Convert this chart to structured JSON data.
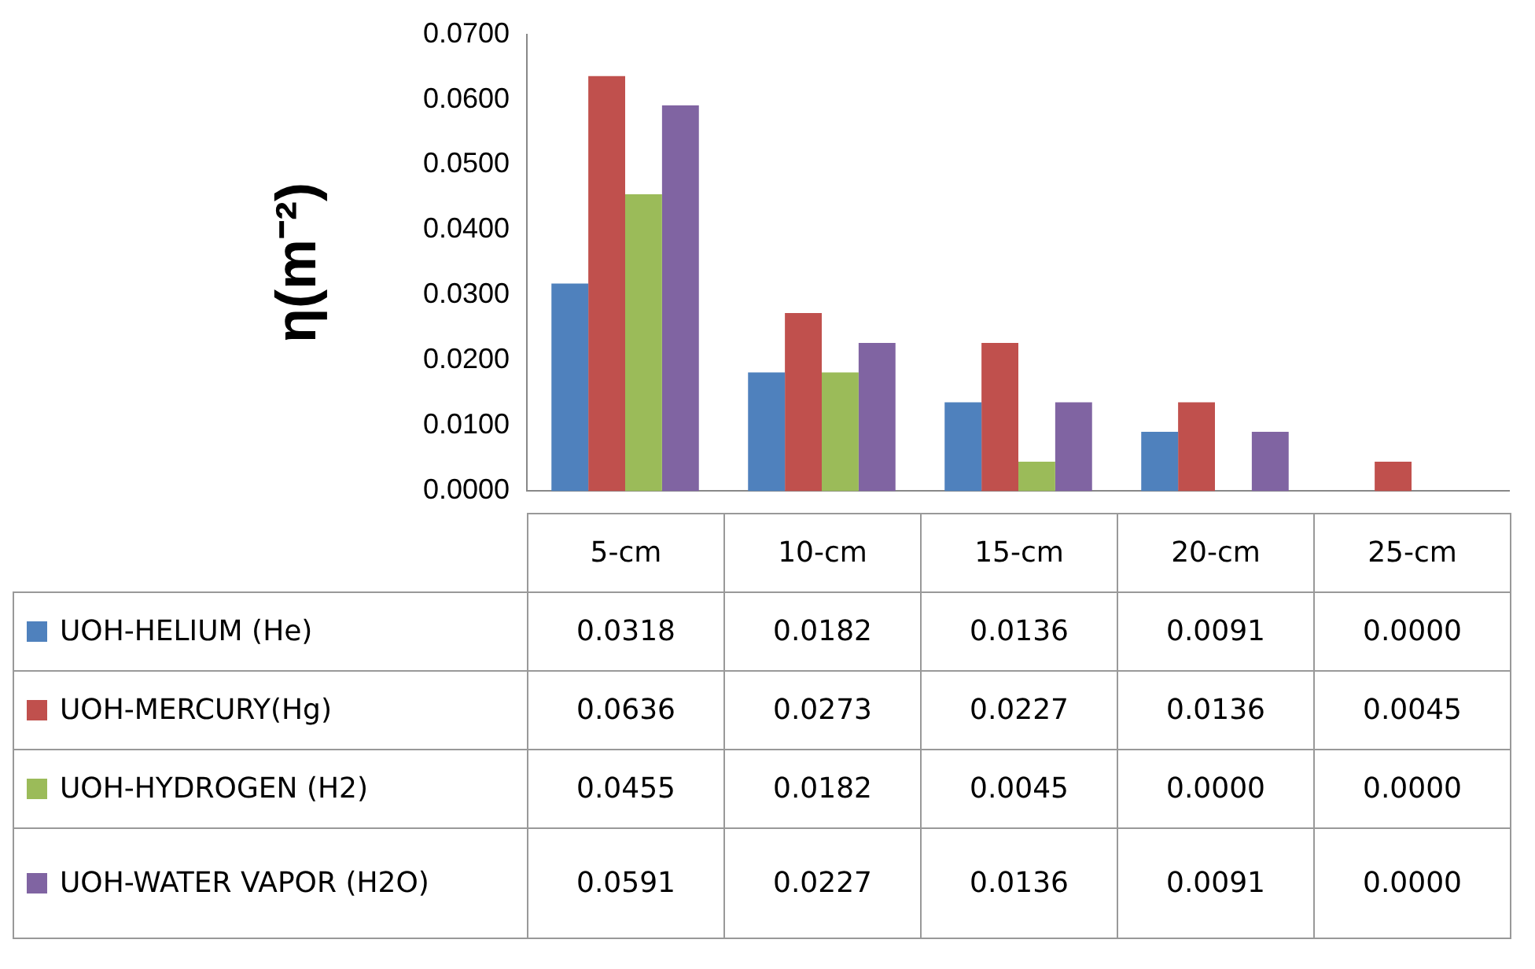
{
  "chart_data": {
    "type": "bar",
    "ylabel": "η(m⁻²)",
    "categories": [
      "5-cm",
      "10-cm",
      "15-cm",
      "20-cm",
      "25-cm"
    ],
    "ylim": [
      0,
      0.07
    ],
    "yticks": [
      {
        "value": 0,
        "label": "0.0000"
      },
      {
        "value": 0.01,
        "label": "0.0100"
      },
      {
        "value": 0.02,
        "label": "0.0200"
      },
      {
        "value": 0.03,
        "label": "0.0300"
      },
      {
        "value": 0.04,
        "label": "0.0400"
      },
      {
        "value": 0.05,
        "label": "0.0500"
      },
      {
        "value": 0.06,
        "label": "0.0600"
      },
      {
        "value": 0.07,
        "label": "0.0700"
      }
    ],
    "grid": false,
    "legend": "bottom",
    "series": [
      {
        "name": "UOH-HELIUM (He)",
        "color": "#4f81bd",
        "values": [
          0.0318,
          0.0182,
          0.0136,
          0.0091,
          0
        ],
        "value_labels": [
          "0.0318",
          "0.0182",
          "0.0136",
          "0.0091",
          "0.0000"
        ]
      },
      {
        "name": "UOH-MERCURY(Hg)",
        "color": "#c0504d",
        "values": [
          0.0636,
          0.0273,
          0.0227,
          0.0136,
          0.0045
        ],
        "value_labels": [
          "0.0636",
          "0.0273",
          "0.0227",
          "0.0136",
          "0.0045"
        ]
      },
      {
        "name": "UOH-HYDROGEN (H2)",
        "color": "#9bbb59",
        "values": [
          0.0455,
          0.0182,
          0.0045,
          0,
          0
        ],
        "value_labels": [
          "0.0455",
          "0.0182",
          "0.0045",
          "0.0000",
          "0.0000"
        ]
      },
      {
        "name": "UOH-WATER VAPOR (H2O)",
        "color": "#8064a2",
        "values": [
          0.0591,
          0.0227,
          0.0136,
          0.0091,
          0
        ],
        "value_labels": [
          "0.0591",
          "0.0227",
          "0.0136",
          "0.0091",
          "0.0000"
        ]
      }
    ]
  }
}
